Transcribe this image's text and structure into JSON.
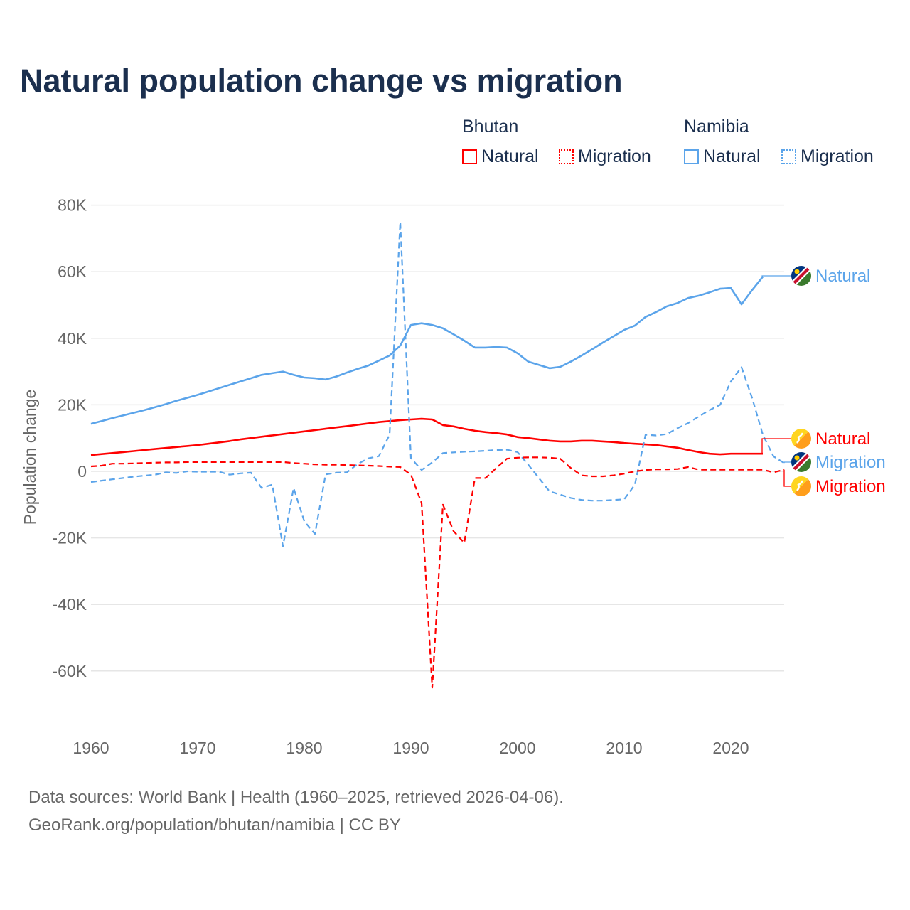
{
  "chart_data": {
    "type": "line",
    "title": "Natural population change vs migration",
    "xlabel": "",
    "ylabel": "Population change",
    "unit": "thousands",
    "xlim": [
      1960,
      2025
    ],
    "ylim": [
      -70,
      80
    ],
    "x_ticks": [
      "1960",
      "1970",
      "1980",
      "1990",
      "2000",
      "2010",
      "2020"
    ],
    "y_ticks": [
      {
        "v": 80,
        "label": "80K"
      },
      {
        "v": 60,
        "label": "60K"
      },
      {
        "v": 40,
        "label": "40K"
      },
      {
        "v": 20,
        "label": "20K"
      },
      {
        "v": 0,
        "label": "0"
      },
      {
        "v": -20,
        "label": "-20K"
      },
      {
        "v": -40,
        "label": "-40K"
      },
      {
        "v": -60,
        "label": "-60K"
      }
    ],
    "grid": true,
    "legend": {
      "placement": "top-right",
      "groups": [
        {
          "name": "Bhutan",
          "items": [
            "Natural",
            "Migration"
          ],
          "color": "#ff0000"
        },
        {
          "name": "Namibia",
          "items": [
            "Natural",
            "Migration"
          ],
          "color": "#5ba4ea"
        }
      ]
    },
    "x_start": 1960,
    "series": [
      {
        "country": "Namibia",
        "name": "Natural",
        "color": "#5ba4ea",
        "dash": false,
        "end_label": "Natural",
        "values": [
          14.3,
          15.1,
          16.0,
          16.8,
          17.6,
          18.4,
          19.3,
          20.2,
          21.2,
          22.1,
          23.0,
          24.0,
          25.0,
          26.0,
          27.0,
          28.0,
          29.0,
          29.5,
          30.0,
          29.0,
          28.2,
          28.0,
          27.6,
          28.5,
          29.7,
          30.8,
          31.8,
          33.3,
          34.8,
          37.8,
          44.0,
          44.5,
          44.0,
          43.0,
          41.2,
          39.3,
          37.2,
          37.2,
          37.4,
          37.2,
          35.5,
          33.0,
          32.0,
          31.0,
          31.4,
          33.0,
          34.8,
          36.7,
          38.7,
          40.6,
          42.5,
          43.8,
          46.4,
          47.9,
          49.6,
          50.6,
          52.1,
          52.8,
          53.8,
          54.9,
          55.1,
          50.2,
          54.5,
          58.5,
          null,
          null
        ]
      },
      {
        "country": "Bhutan",
        "name": "Natural",
        "color": "#ff0000",
        "dash": false,
        "end_label": "Natural",
        "values": [
          4.9,
          5.2,
          5.5,
          5.8,
          6.1,
          6.4,
          6.7,
          7.0,
          7.3,
          7.6,
          7.9,
          8.3,
          8.7,
          9.1,
          9.6,
          10.0,
          10.4,
          10.8,
          11.2,
          11.6,
          12.0,
          12.4,
          12.8,
          13.2,
          13.6,
          14.0,
          14.4,
          14.8,
          15.1,
          15.4,
          15.6,
          15.8,
          15.6,
          13.9,
          13.5,
          12.8,
          12.2,
          11.8,
          11.5,
          11.1,
          10.3,
          10.0,
          9.6,
          9.2,
          9.0,
          9.0,
          9.2,
          9.2,
          9.0,
          8.8,
          8.5,
          8.3,
          8.1,
          7.9,
          7.5,
          7.1,
          6.4,
          5.8,
          5.3,
          5.1,
          5.3,
          5.3,
          5.3,
          5.3,
          null,
          null
        ]
      },
      {
        "country": "Namibia",
        "name": "Migration",
        "color": "#5ba4ea",
        "dash": true,
        "end_label": "Migration",
        "values": [
          -3.2,
          -2.8,
          -2.4,
          -2.0,
          -1.6,
          -1.3,
          -1.0,
          -0.3,
          -0.5,
          0.0,
          -0.1,
          -0.1,
          -0.1,
          -1.0,
          -0.6,
          -0.4,
          -5.0,
          -4.0,
          -22.5,
          -5.0,
          -15.0,
          -18.8,
          -0.9,
          -0.4,
          -0.3,
          2.2,
          3.9,
          4.6,
          11.0,
          75.0,
          4.0,
          0.4,
          2.7,
          5.5,
          5.7,
          5.9,
          6.0,
          6.2,
          6.4,
          6.5,
          5.8,
          2.0,
          -2.0,
          -6.0,
          -7.0,
          -8.0,
          -8.6,
          -8.8,
          -8.8,
          -8.6,
          -8.4,
          -4.0,
          11.0,
          10.8,
          11.2,
          13.0,
          14.5,
          16.5,
          18.4,
          20.0,
          27.0,
          31.3,
          22.0,
          11.0,
          4.5,
          2.5
        ]
      },
      {
        "country": "Bhutan",
        "name": "Migration",
        "color": "#ff0000",
        "dash": true,
        "end_label": "Migration",
        "values": [
          1.5,
          1.7,
          2.3,
          2.3,
          2.4,
          2.5,
          2.6,
          2.7,
          2.7,
          2.8,
          2.8,
          2.8,
          2.8,
          2.8,
          2.8,
          2.8,
          2.8,
          2.8,
          2.8,
          2.5,
          2.3,
          2.1,
          2.0,
          2.0,
          1.9,
          1.8,
          1.7,
          1.6,
          1.4,
          1.3,
          -1.0,
          -9.5,
          -65.0,
          -10.0,
          -18.0,
          -21.5,
          -2.0,
          -2.0,
          1.0,
          3.8,
          4.1,
          4.2,
          4.2,
          4.1,
          3.8,
          1.0,
          -1.2,
          -1.5,
          -1.5,
          -1.2,
          -0.7,
          0.0,
          0.4,
          0.6,
          0.6,
          0.7,
          1.3,
          0.5,
          0.5,
          0.5,
          0.5,
          0.5,
          0.5,
          0.5,
          -0.3,
          0.5
        ]
      }
    ]
  },
  "footer": {
    "line1": "Data sources: World Bank | Health (1960–2025, retrieved 2026-04-06).",
    "line2": "GeoRank.org/population/bhutan/namibia | CC BY"
  }
}
